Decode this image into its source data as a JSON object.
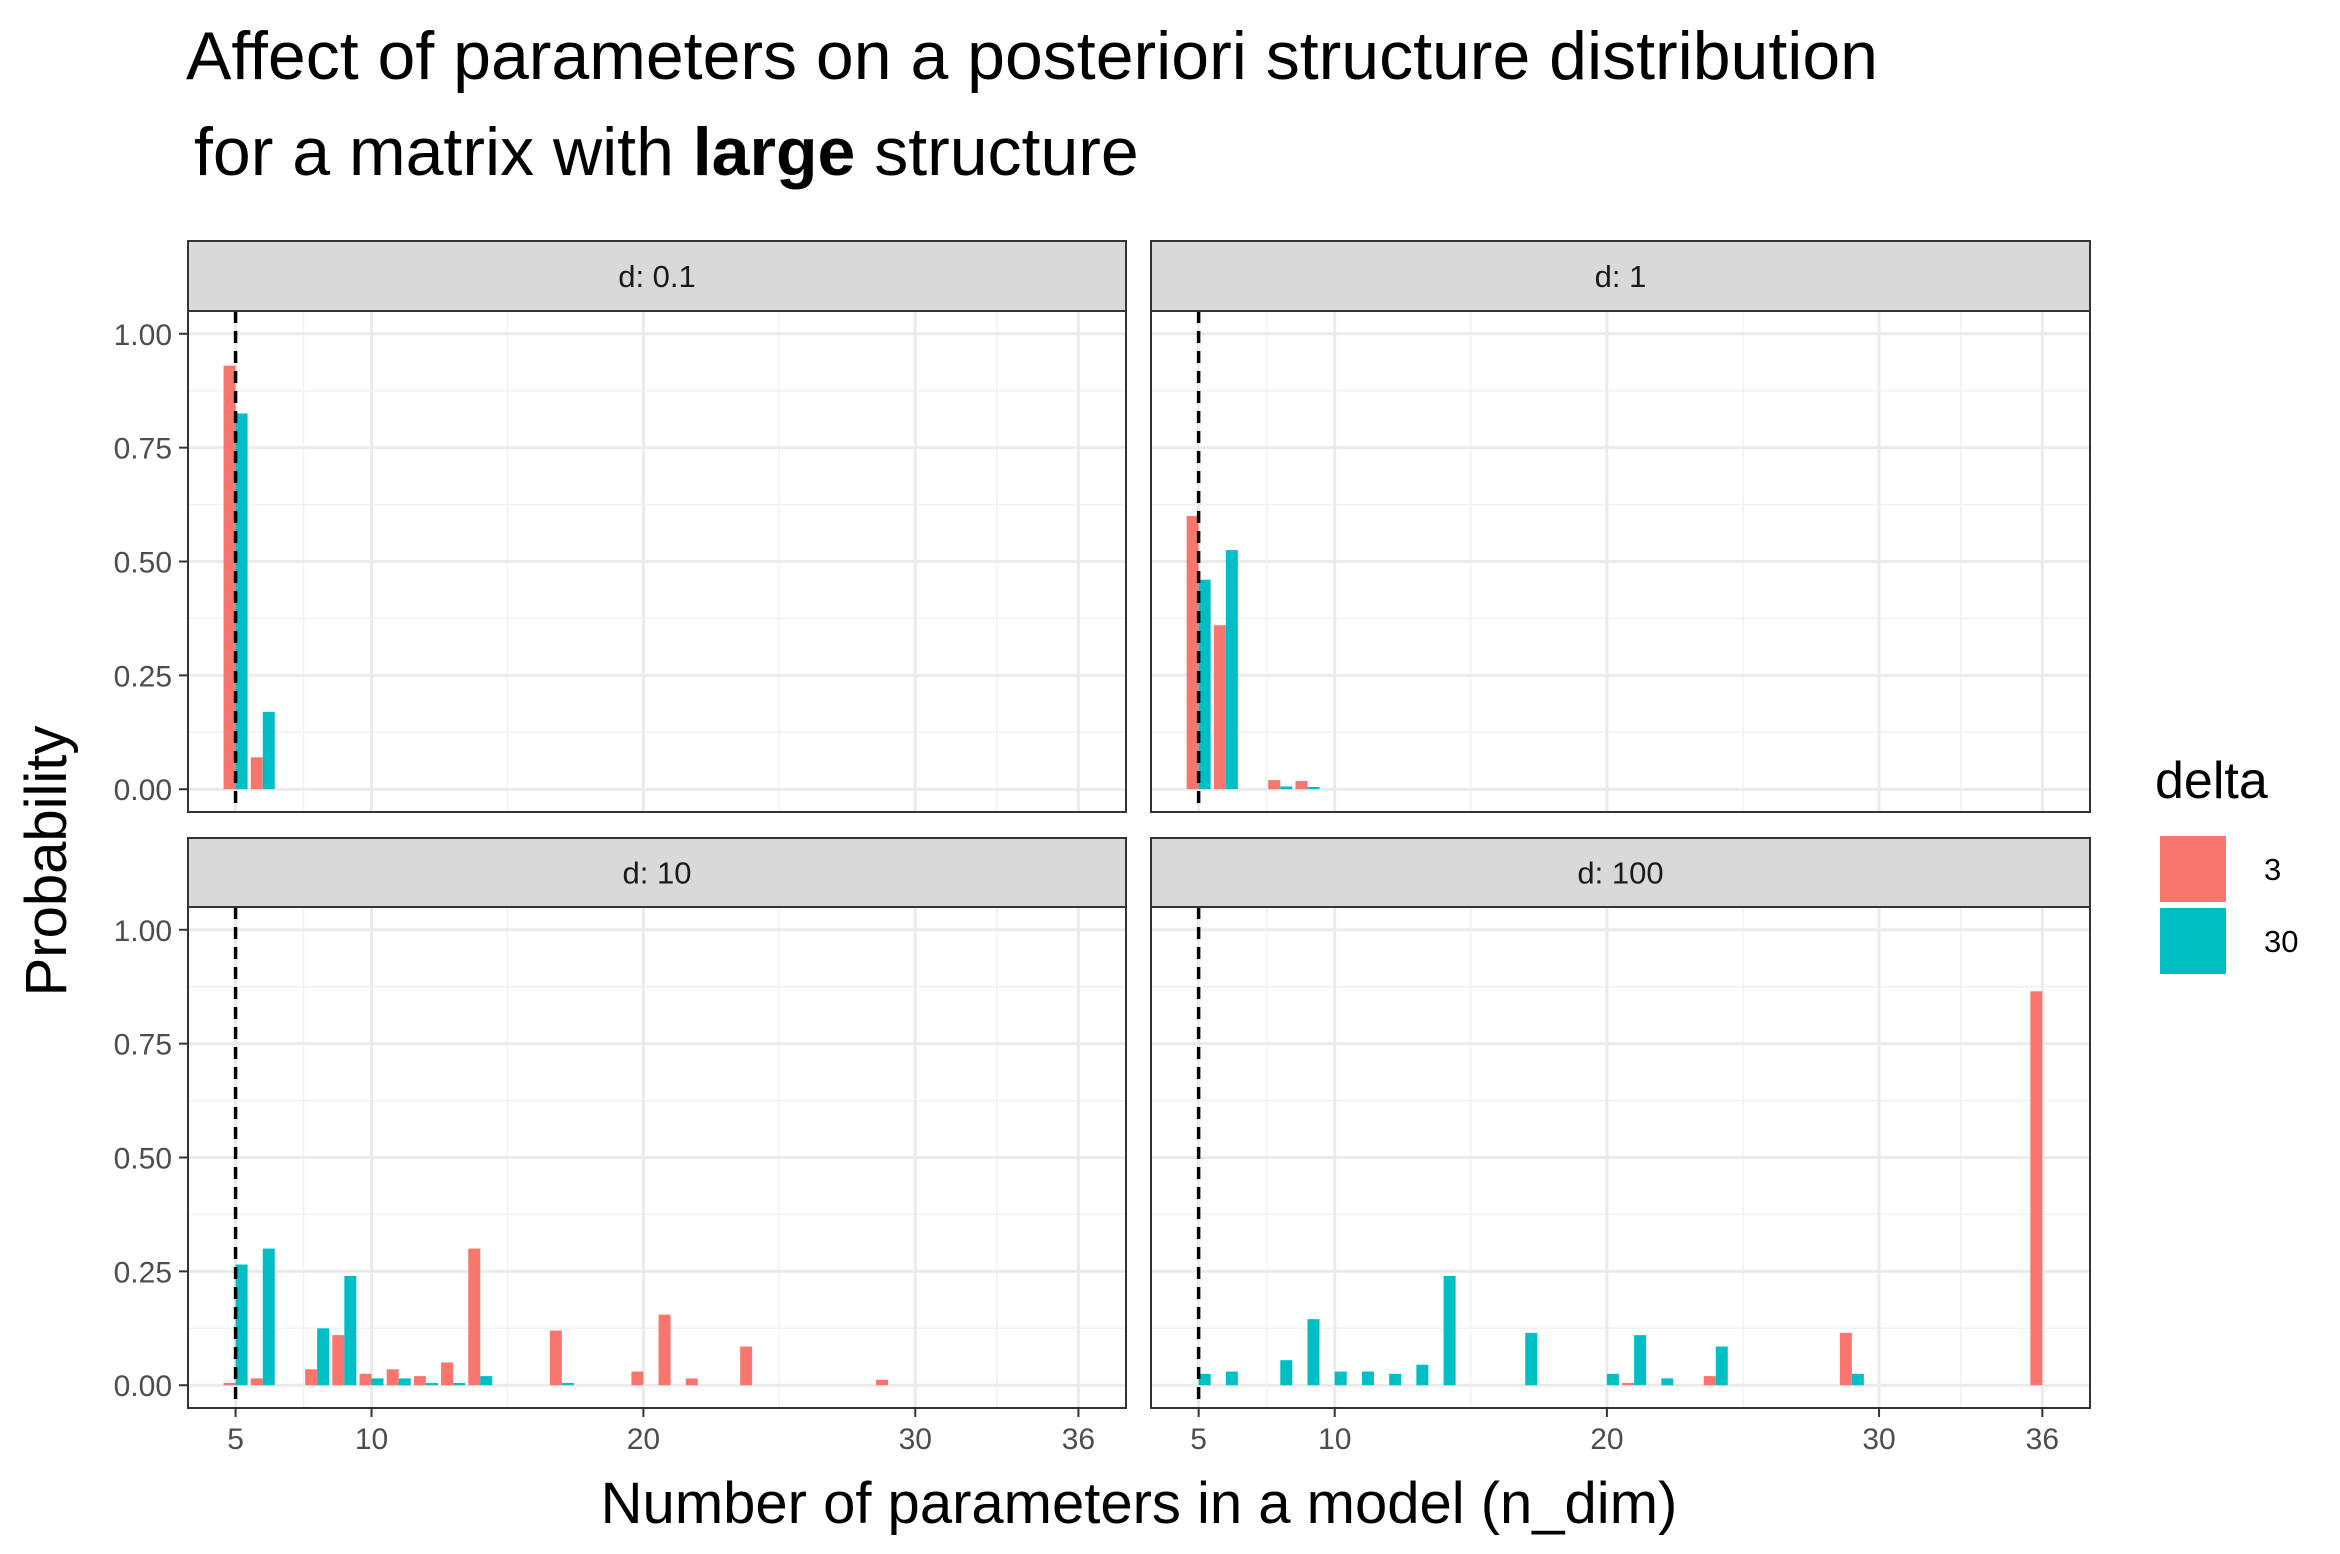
{
  "title": {
    "line1": "Affect of parameters on a posteriori structure distribution",
    "line2_prefix": "for a matrix with ",
    "line2_bold": "large",
    "line2_suffix": " structure"
  },
  "chart_data": {
    "type": "bar",
    "x_label": "Number of parameters in a model (n_dim)",
    "y_label": "Probability",
    "x_ticks": [
      5,
      10,
      20,
      30,
      36
    ],
    "y_ticks": [
      0,
      0.25,
      0.5,
      0.75,
      1.0
    ],
    "y_tick_labels": [
      "0.00",
      "0.25",
      "0.50",
      "0.75",
      "1.00"
    ],
    "xlim": [
      3.25,
      37.75
    ],
    "ylim": [
      -0.05,
      1.05
    ],
    "reference_line_x": 5,
    "legend": {
      "title": "delta",
      "entries": [
        {
          "label": "3",
          "color": "#F8766D"
        },
        {
          "label": "30",
          "color": "#00BFC4"
        }
      ],
      "position": "right"
    },
    "panels": [
      {
        "strip": "d: 0.1",
        "series": [
          {
            "name": "3",
            "points": [
              [
                5,
                0.93
              ],
              [
                6,
                0.07
              ]
            ]
          },
          {
            "name": "30",
            "points": [
              [
                5,
                0.825
              ],
              [
                6,
                0.17
              ]
            ]
          }
        ]
      },
      {
        "strip": "d: 1",
        "series": [
          {
            "name": "3",
            "points": [
              [
                5,
                0.6
              ],
              [
                6,
                0.36
              ],
              [
                8,
                0.02
              ],
              [
                9,
                0.018
              ]
            ]
          },
          {
            "name": "30",
            "points": [
              [
                5,
                0.46
              ],
              [
                6,
                0.525
              ],
              [
                8,
                0.006
              ],
              [
                9,
                0.005
              ]
            ]
          }
        ]
      },
      {
        "strip": "d: 10",
        "series": [
          {
            "name": "3",
            "points": [
              [
                5,
                0.005
              ],
              [
                6,
                0.015
              ],
              [
                8,
                0.035
              ],
              [
                9,
                0.11
              ],
              [
                10,
                0.025
              ],
              [
                11,
                0.035
              ],
              [
                12,
                0.02
              ],
              [
                13,
                0.05
              ],
              [
                14,
                0.3
              ],
              [
                17,
                0.12
              ],
              [
                20,
                0.03
              ],
              [
                21,
                0.155
              ],
              [
                22,
                0.015
              ],
              [
                24,
                0.085
              ],
              [
                29,
                0.012
              ]
            ]
          },
          {
            "name": "30",
            "points": [
              [
                5,
                0.265
              ],
              [
                6,
                0.3
              ],
              [
                8,
                0.125
              ],
              [
                9,
                0.24
              ],
              [
                10,
                0.015
              ],
              [
                11,
                0.015
              ],
              [
                12,
                0.005
              ],
              [
                13,
                0.005
              ],
              [
                14,
                0.02
              ],
              [
                17,
                0.005
              ]
            ]
          }
        ]
      },
      {
        "strip": "d: 100",
        "series": [
          {
            "name": "3",
            "points": [
              [
                21,
                0.005
              ],
              [
                24,
                0.02
              ],
              [
                29,
                0.115
              ],
              [
                36,
                0.865
              ]
            ]
          },
          {
            "name": "30",
            "points": [
              [
                5,
                0.025
              ],
              [
                6,
                0.03
              ],
              [
                8,
                0.055
              ],
              [
                9,
                0.145
              ],
              [
                10,
                0.03
              ],
              [
                11,
                0.03
              ],
              [
                12,
                0.025
              ],
              [
                13,
                0.045
              ],
              [
                14,
                0.24
              ],
              [
                17,
                0.115
              ],
              [
                20,
                0.025
              ],
              [
                21,
                0.11
              ],
              [
                22,
                0.015
              ],
              [
                24,
                0.085
              ],
              [
                29,
                0.025
              ]
            ]
          }
        ]
      }
    ]
  }
}
